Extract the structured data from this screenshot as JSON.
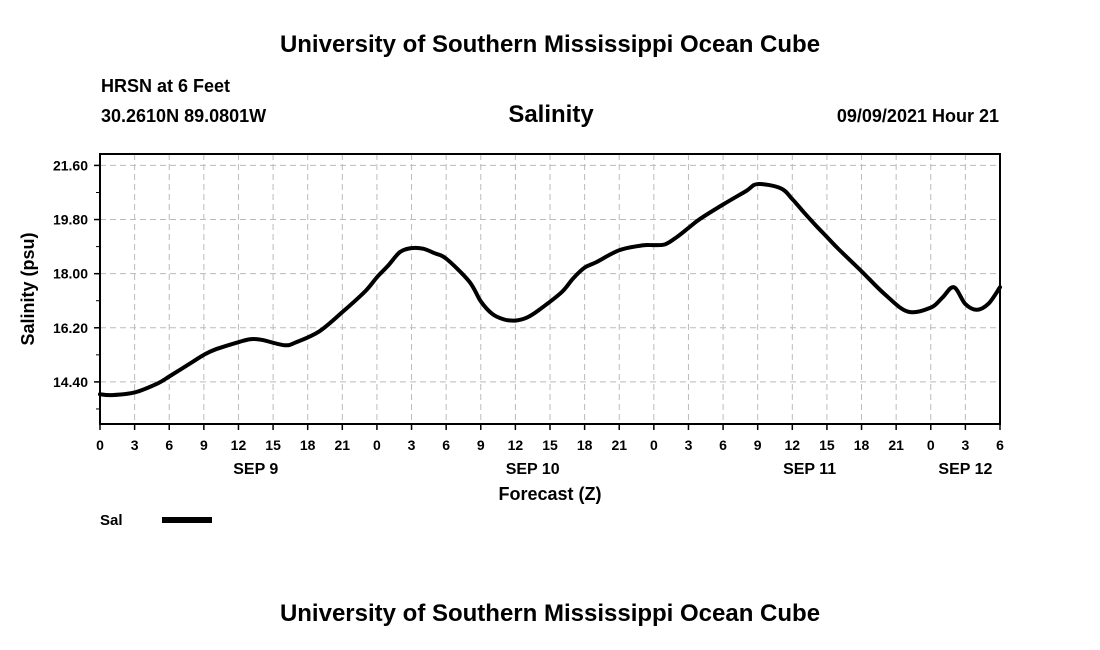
{
  "header": {
    "title_top": "University of Southern Mississippi Ocean Cube",
    "station": "HRSN at 6 Feet",
    "coords": "30.2610N  89.0801W",
    "timestamp": "09/09/2021 Hour 21"
  },
  "footer": {
    "title_bottom": "University of Southern Mississippi Ocean Cube"
  },
  "colors": {
    "line": "#000000",
    "grid": "#bbbbbb"
  },
  "chart_data": {
    "type": "line",
    "title": "Salinity",
    "xlabel": "Forecast (Z)",
    "ylabel": "Salinity (psu)",
    "xlim": [
      0,
      78
    ],
    "ylim": [
      13.0,
      21.98
    ],
    "yticks": [
      "14.40",
      "16.20",
      "18.00",
      "19.80",
      "21.60"
    ],
    "ytick_values": [
      14.4,
      16.2,
      18.0,
      19.8,
      21.6
    ],
    "xtick_labels": [
      "0",
      "3",
      "6",
      "9",
      "12",
      "15",
      "18",
      "21",
      "0",
      "3",
      "6",
      "9",
      "12",
      "15",
      "18",
      "21",
      "0",
      "3",
      "6",
      "9",
      "12",
      "15",
      "18",
      "21",
      "0",
      "3",
      "6"
    ],
    "day_labels": [
      {
        "label": "SEP 9",
        "x": 13.5
      },
      {
        "label": "SEP 10",
        "x": 37.5
      },
      {
        "label": "SEP 11",
        "x": 61.5
      },
      {
        "label": "SEP 12",
        "x": 75
      }
    ],
    "grid": true,
    "series": [
      {
        "name": "Sal",
        "x": [
          0,
          1,
          3,
          5,
          6,
          8,
          9,
          10,
          12,
          13,
          14,
          16,
          17,
          19,
          21,
          23,
          24,
          25,
          26,
          27,
          28,
          29,
          30,
          32,
          33,
          34,
          35,
          36,
          37,
          38,
          40,
          41,
          42,
          43,
          45,
          47,
          48,
          49,
          50,
          51,
          52,
          54,
          56,
          57,
          59,
          60,
          61,
          62,
          63,
          64,
          66,
          68,
          70,
          72,
          73,
          74,
          75,
          76,
          77,
          78
        ],
        "values": [
          13.99,
          13.96,
          14.05,
          14.35,
          14.58,
          15.06,
          15.3,
          15.48,
          15.72,
          15.82,
          15.8,
          15.62,
          15.72,
          16.08,
          16.72,
          17.42,
          17.88,
          18.28,
          18.72,
          18.85,
          18.83,
          18.68,
          18.5,
          17.74,
          17.08,
          16.66,
          16.48,
          16.44,
          16.54,
          16.78,
          17.38,
          17.84,
          18.2,
          18.38,
          18.78,
          18.94,
          18.95,
          18.98,
          19.22,
          19.52,
          19.82,
          20.3,
          20.75,
          20.98,
          20.84,
          20.48,
          20.04,
          19.62,
          19.22,
          18.82,
          18.08,
          17.32,
          16.74,
          16.87,
          17.2,
          17.55,
          16.99,
          16.8,
          17.0,
          17.55
        ]
      }
    ],
    "legend": {
      "label": "Sal",
      "placement": "bottom-left"
    }
  }
}
